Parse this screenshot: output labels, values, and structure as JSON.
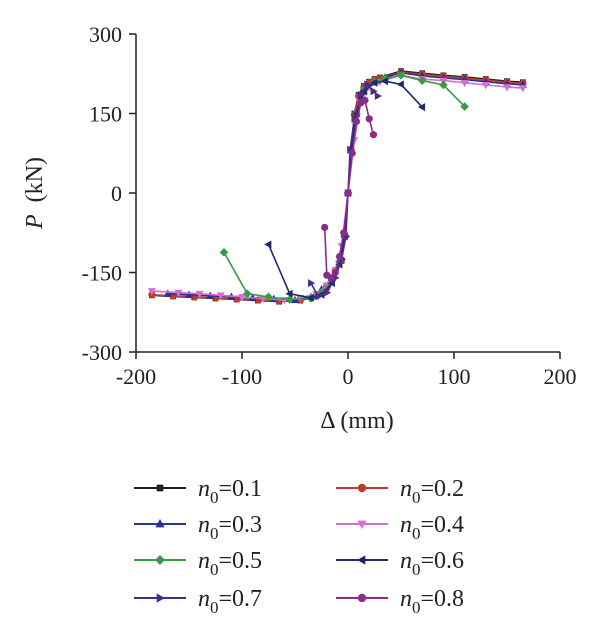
{
  "chart_data": {
    "type": "line",
    "xlabel": "Δ (mm)",
    "ylabel_symbol": "P",
    "ylabel_unit": "(kN)",
    "xlim": [
      -200,
      200
    ],
    "ylim": [
      -300,
      300
    ],
    "xticks": [
      "-200",
      "-100",
      "0",
      "100",
      "200"
    ],
    "yticks": [
      "300",
      "150",
      "0",
      "-150",
      "-300"
    ],
    "xtick_values": [
      -200,
      -100,
      0,
      100,
      200
    ],
    "ytick_values": [
      300,
      150,
      0,
      -150,
      -300
    ],
    "grid": false,
    "legend_position": "bottom",
    "legend_prefix": "n",
    "legend_subscript": "0",
    "series": [
      {
        "name": "=0.1",
        "color": "#222222",
        "marker": "square",
        "x": [
          -185,
          -165,
          -145,
          -125,
          -105,
          -85,
          -65,
          -45,
          -30,
          -20,
          -12,
          -6,
          -3,
          0,
          3,
          6,
          10,
          15,
          20,
          25,
          30,
          50,
          70,
          90,
          110,
          130,
          150,
          165
        ],
        "y": [
          -193,
          -195,
          -197,
          -199,
          -201,
          -203,
          -205,
          -203,
          -195,
          -178,
          -148,
          -128,
          -82,
          0,
          82,
          150,
          185,
          202,
          210,
          215,
          218,
          230,
          226,
          222,
          219,
          215,
          211,
          209
        ]
      },
      {
        "name": "=0.2",
        "color": "#c0392b",
        "marker": "circle",
        "x": [
          -185,
          -165,
          -145,
          -125,
          -105,
          -85,
          -65,
          -45,
          -30,
          -20,
          -12,
          -6,
          -3,
          0,
          3,
          6,
          10,
          15,
          20,
          25,
          30,
          50,
          70,
          90,
          110,
          130,
          150,
          165
        ],
        "y": [
          -192,
          -194,
          -196,
          -198,
          -200,
          -202,
          -204,
          -202,
          -194,
          -176,
          -146,
          -126,
          -80,
          0,
          80,
          148,
          183,
          200,
          208,
          213,
          216,
          228,
          224,
          220,
          217,
          213,
          209,
          207
        ]
      },
      {
        "name": "=0.3",
        "color": "#2e3192",
        "marker": "triangle-up",
        "x": [
          -170,
          -150,
          -130,
          -110,
          -90,
          -70,
          -50,
          -35,
          -25,
          -15,
          -8,
          -3,
          0,
          3,
          8,
          15,
          25,
          35,
          50,
          70,
          90,
          110,
          130,
          150,
          165
        ],
        "y": [
          -190,
          -192,
          -194,
          -196,
          -198,
          -200,
          -202,
          -196,
          -182,
          -160,
          -125,
          -80,
          0,
          80,
          150,
          192,
          210,
          218,
          227,
          221,
          217,
          214,
          210,
          206,
          204
        ]
      },
      {
        "name": "=0.4",
        "color": "#d070d0",
        "marker": "triangle-down",
        "x": [
          -185,
          -160,
          -140,
          -120,
          -100,
          -80,
          -60,
          -45,
          -30,
          -20,
          -12,
          -6,
          0,
          6,
          12,
          20,
          30,
          50,
          70,
          90,
          110,
          130,
          150,
          165
        ],
        "y": [
          -185,
          -188,
          -190,
          -193,
          -196,
          -199,
          -202,
          -198,
          -190,
          -174,
          -146,
          -100,
          0,
          100,
          170,
          200,
          210,
          222,
          215,
          212,
          208,
          204,
          200,
          198
        ]
      },
      {
        "name": "=0.5",
        "color": "#3a9a47",
        "marker": "diamond",
        "x": [
          -117,
          -95,
          -75,
          -55,
          -35,
          -25,
          -15,
          -8,
          -3,
          0,
          3,
          8,
          15,
          25,
          35,
          50,
          70,
          90,
          110
        ],
        "y": [
          -112,
          -190,
          -196,
          -201,
          -199,
          -188,
          -165,
          -130,
          -80,
          0,
          80,
          150,
          195,
          210,
          216,
          222,
          212,
          204,
          163
        ]
      },
      {
        "name": "=0.6",
        "color": "#1f2a6b",
        "marker": "triangle-left",
        "x": [
          -75,
          -55,
          -35,
          -25,
          -15,
          -8,
          -3,
          0,
          3,
          8,
          15,
          25,
          35,
          50,
          70
        ],
        "y": [
          -97,
          -190,
          -198,
          -192,
          -170,
          -135,
          -82,
          0,
          82,
          150,
          192,
          208,
          211,
          205,
          162
        ]
      },
      {
        "name": "=0.7",
        "color": "#4a2c8a",
        "marker": "triangle-right",
        "x": [
          -35,
          -28,
          -20,
          -12,
          -6,
          -2,
          0,
          2,
          6,
          12,
          18,
          24,
          28
        ],
        "y": [
          -170,
          -195,
          -188,
          -160,
          -125,
          -82,
          0,
          82,
          140,
          185,
          205,
          192,
          183
        ]
      },
      {
        "name": "=0.8",
        "color": "#8a2c8a",
        "marker": "circle",
        "x": [
          -22,
          -20,
          -16,
          -12,
          -8,
          -4,
          0,
          4,
          8,
          12,
          16,
          20,
          24
        ],
        "y": [
          -65,
          -155,
          -160,
          -150,
          -120,
          -75,
          0,
          75,
          135,
          170,
          175,
          140,
          110
        ]
      }
    ]
  }
}
